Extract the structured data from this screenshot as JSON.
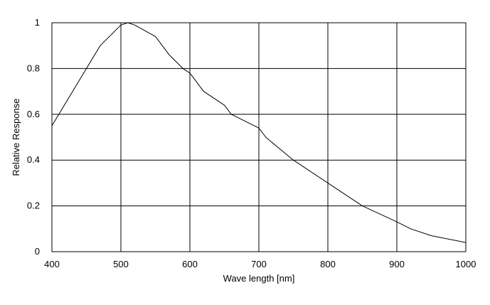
{
  "chart_data": {
    "type": "line",
    "title": "",
    "xlabel": "Wave length [nm]",
    "ylabel": "Relative Response",
    "xlim": [
      400,
      1000
    ],
    "ylim": [
      0,
      1
    ],
    "xticks": [
      400,
      500,
      600,
      700,
      800,
      900,
      1000
    ],
    "xtick_labels": [
      "400",
      "500",
      "600",
      "700",
      "800",
      "900",
      "1000"
    ],
    "yticks": [
      0,
      0.2,
      0.4,
      0.6,
      0.8,
      1
    ],
    "ytick_labels": [
      "0",
      "0.2",
      "0.4",
      "0.6",
      "0.8",
      "1"
    ],
    "grid": true,
    "legend": "none",
    "colors": {
      "line": "#000000",
      "grid": "#000000",
      "background": "#ffffff"
    },
    "series": [
      {
        "x": [
          400,
          440,
          470,
          500,
          510,
          520,
          550,
          570,
          590,
          600,
          620,
          650,
          660,
          700,
          710,
          750,
          800,
          850,
          900,
          920,
          950,
          1000
        ],
        "y": [
          0.55,
          0.75,
          0.9,
          0.99,
          1.0,
          0.99,
          0.94,
          0.86,
          0.8,
          0.78,
          0.7,
          0.64,
          0.6,
          0.54,
          0.5,
          0.4,
          0.3,
          0.2,
          0.13,
          0.1,
          0.07,
          0.04
        ]
      }
    ]
  }
}
